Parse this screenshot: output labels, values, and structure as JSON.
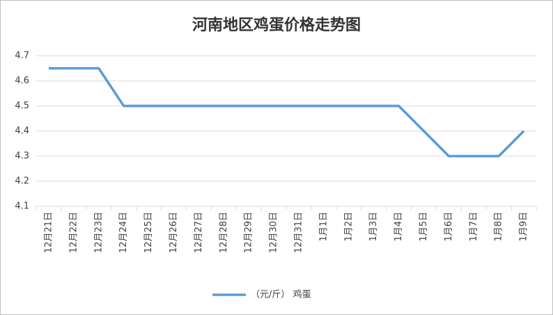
{
  "chart_data": {
    "type": "line",
    "title": "河南地区鸡蛋价格走势图",
    "categories": [
      "12月21日",
      "12月22日",
      "12月23日",
      "12月24日",
      "12月25日",
      "12月26日",
      "12月27日",
      "12月28日",
      "12月29日",
      "12月30日",
      "12月31日",
      "1月1日",
      "1月2日",
      "1月3日",
      "1月4日",
      "1月5日",
      "1月6日",
      "1月7日",
      "1月8日",
      "1月9日"
    ],
    "series": [
      {
        "name": "（元/斤） 鸡蛋",
        "color": "#5b9bd5",
        "values": [
          4.65,
          4.65,
          4.65,
          4.5,
          4.5,
          4.5,
          4.5,
          4.5,
          4.5,
          4.5,
          4.5,
          4.5,
          4.5,
          4.5,
          4.5,
          4.4,
          4.3,
          4.3,
          4.3,
          4.4
        ]
      }
    ],
    "ylim": [
      4.1,
      4.7
    ],
    "yticks": [
      4.1,
      4.2,
      4.3,
      4.4,
      4.5,
      4.6,
      4.7
    ],
    "grid": true,
    "legend": "bottom"
  }
}
